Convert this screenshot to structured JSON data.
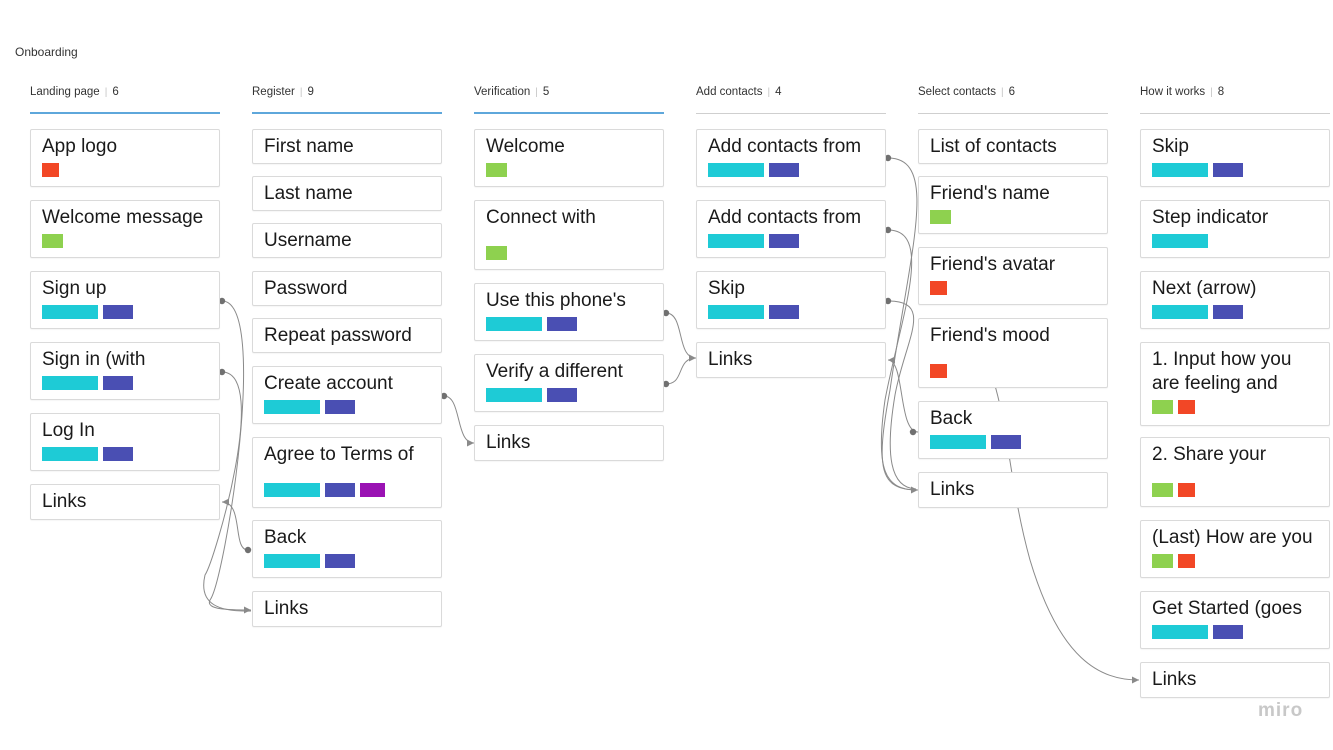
{
  "board": {
    "title": "Onboarding",
    "brand": "miro"
  },
  "colors": {
    "cyan": "#1ecbd6",
    "indigo": "#4a4fb3",
    "purple": "#9a12b3",
    "green": "#8ed14f",
    "red": "#f24726",
    "active_underline": "#5ea7db"
  },
  "columns": [
    {
      "title": "Landing page",
      "count": "6",
      "cards": [
        {
          "title": "App logo",
          "tags": [
            "red"
          ]
        },
        {
          "title": "Welcome message",
          "tags": [
            "green"
          ]
        },
        {
          "title": "Sign up",
          "tags": [
            "cyan",
            "indigo"
          ]
        },
        {
          "title": "Sign in (with",
          "tags": [
            "cyan",
            "indigo"
          ]
        },
        {
          "title": "Log In",
          "tags": [
            "cyan",
            "indigo"
          ]
        },
        {
          "title": "Links",
          "tags": []
        }
      ]
    },
    {
      "title": "Register",
      "count": "9",
      "cards": [
        {
          "title": "First name",
          "tags": []
        },
        {
          "title": "Last name",
          "tags": []
        },
        {
          "title": "Username",
          "tags": []
        },
        {
          "title": "Password",
          "tags": []
        },
        {
          "title": "Repeat password",
          "tags": []
        },
        {
          "title": "Create account",
          "tags": [
            "cyan",
            "indigo"
          ]
        },
        {
          "title": "Agree to Terms of",
          "tags": [
            "cyan",
            "indigo",
            "purple"
          ]
        },
        {
          "title": "Back",
          "tags": [
            "cyan",
            "indigo"
          ]
        },
        {
          "title": "Links",
          "tags": []
        }
      ]
    },
    {
      "title": "Verification",
      "count": "5",
      "cards": [
        {
          "title": "Welcome",
          "tags": [
            "green"
          ]
        },
        {
          "title": "Connect with",
          "tags": [
            "green"
          ]
        },
        {
          "title": "Use this phone's",
          "tags": [
            "cyan",
            "indigo"
          ]
        },
        {
          "title": "Verify a different",
          "tags": [
            "cyan",
            "indigo"
          ]
        },
        {
          "title": "Links",
          "tags": []
        }
      ]
    },
    {
      "title": "Add contacts",
      "count": "4",
      "cards": [
        {
          "title": "Add contacts from",
          "tags": [
            "cyan",
            "indigo"
          ]
        },
        {
          "title": "Add contacts from",
          "tags": [
            "cyan",
            "indigo"
          ]
        },
        {
          "title": "Skip",
          "tags": [
            "cyan",
            "indigo"
          ]
        },
        {
          "title": "Links",
          "tags": []
        }
      ]
    },
    {
      "title": "Select contacts",
      "count": "6",
      "cards": [
        {
          "title": "List of contacts",
          "tags": []
        },
        {
          "title": "Friend's name",
          "tags": [
            "green"
          ]
        },
        {
          "title": "Friend's avatar",
          "tags": [
            "red"
          ]
        },
        {
          "title": "Friend's mood",
          "tags": [
            "red"
          ]
        },
        {
          "title": "Back",
          "tags": [
            "cyan",
            "indigo"
          ]
        },
        {
          "title": "Links",
          "tags": []
        }
      ]
    },
    {
      "title": "How it works",
      "count": "8",
      "cards": [
        {
          "title": "Skip",
          "tags": [
            "cyan",
            "indigo"
          ]
        },
        {
          "title": "Step indicator",
          "tags": [
            "cyan"
          ]
        },
        {
          "title": "Next (arrow)",
          "tags": [
            "cyan",
            "indigo"
          ]
        },
        {
          "title": "1. Input how you are feeling and",
          "tags": [
            "green",
            "red"
          ]
        },
        {
          "title": "2. Share your",
          "tags": [
            "green",
            "red"
          ]
        },
        {
          "title": "(Last) How are you",
          "tags": [
            "green",
            "red"
          ]
        },
        {
          "title": "Get Started (goes",
          "tags": [
            "cyan",
            "indigo"
          ]
        },
        {
          "title": "Links",
          "tags": []
        }
      ]
    }
  ]
}
